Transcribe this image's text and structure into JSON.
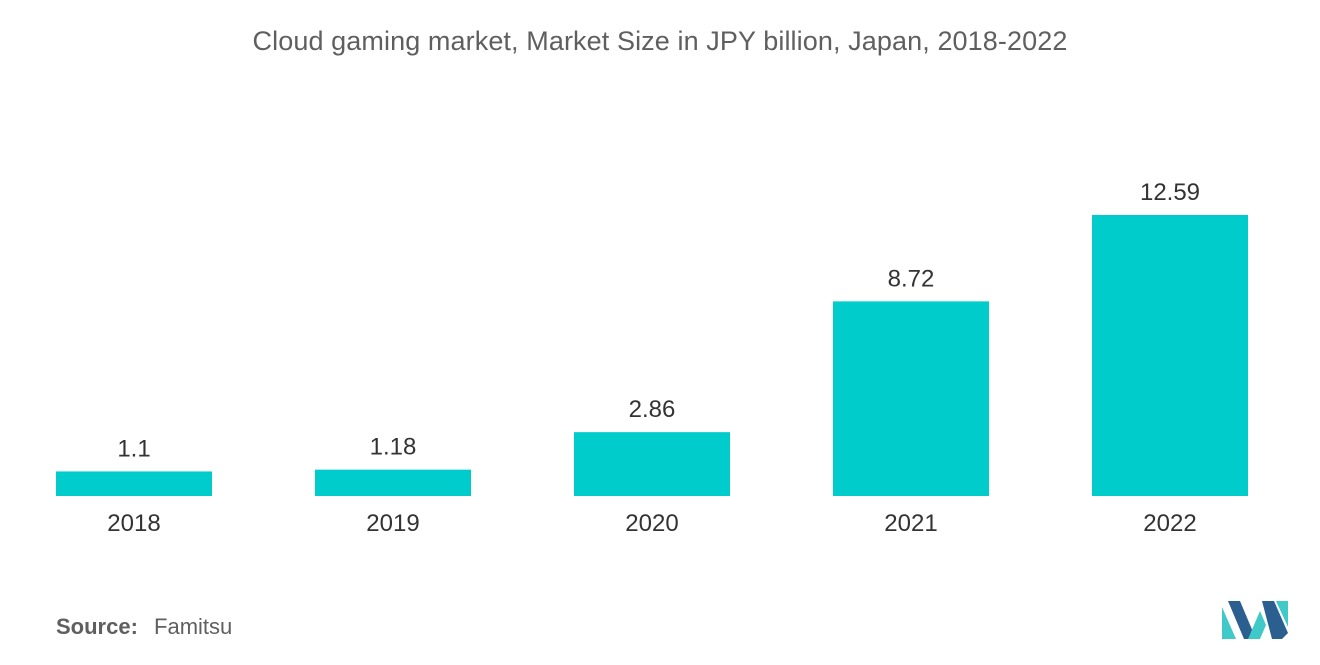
{
  "chart_data": {
    "type": "bar",
    "title": "Cloud gaming market, Market Size in JPY billion, Japan, 2018-2022",
    "categories": [
      "2018",
      "2019",
      "2020",
      "2021",
      "2022"
    ],
    "values": [
      1.1,
      1.18,
      2.86,
      8.72,
      12.59
    ],
    "data_labels": [
      "1.1",
      "1.18",
      "2.86",
      "8.72",
      "12.59"
    ],
    "xlabel": "",
    "ylabel": "",
    "ylim": [
      0,
      12.59
    ],
    "grid": false,
    "bar_color": "#00cccc"
  },
  "source": {
    "label": "Source:",
    "value": "Famitsu"
  },
  "logo": {
    "icon": "mordor-intelligence-logo",
    "colors": [
      "#2a5f8f",
      "#3fc9c9"
    ]
  }
}
